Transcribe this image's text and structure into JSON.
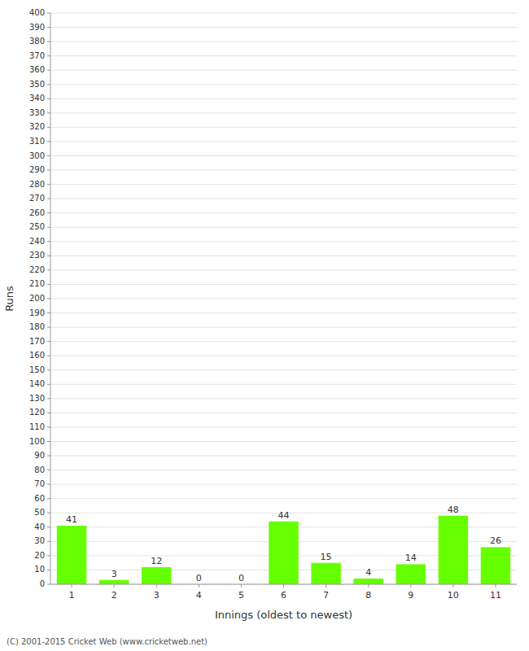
{
  "chart_data": {
    "type": "bar",
    "categories": [
      "1",
      "2",
      "3",
      "4",
      "5",
      "6",
      "7",
      "8",
      "9",
      "10",
      "11"
    ],
    "values": [
      41,
      3,
      12,
      0,
      0,
      44,
      15,
      4,
      14,
      48,
      26
    ],
    "color": "#66ff00",
    "x_label": "Innings (oldest to newest)",
    "y_label": "Runs",
    "ylim": [
      0,
      400
    ],
    "yticks": [
      0,
      10,
      20,
      30,
      40,
      50,
      60,
      70,
      80,
      90,
      100,
      110,
      120,
      130,
      140,
      150,
      160,
      170,
      180,
      190,
      200,
      210,
      220,
      230,
      240,
      250,
      260,
      270,
      280,
      290,
      300,
      310,
      320,
      330,
      340,
      350,
      360,
      370,
      380,
      390,
      400
    ],
    "grid": true,
    "data_labels": true,
    "annotations": [
      "(C) 2001-2015 Cricket Web (www.cricketweb.net)"
    ]
  }
}
